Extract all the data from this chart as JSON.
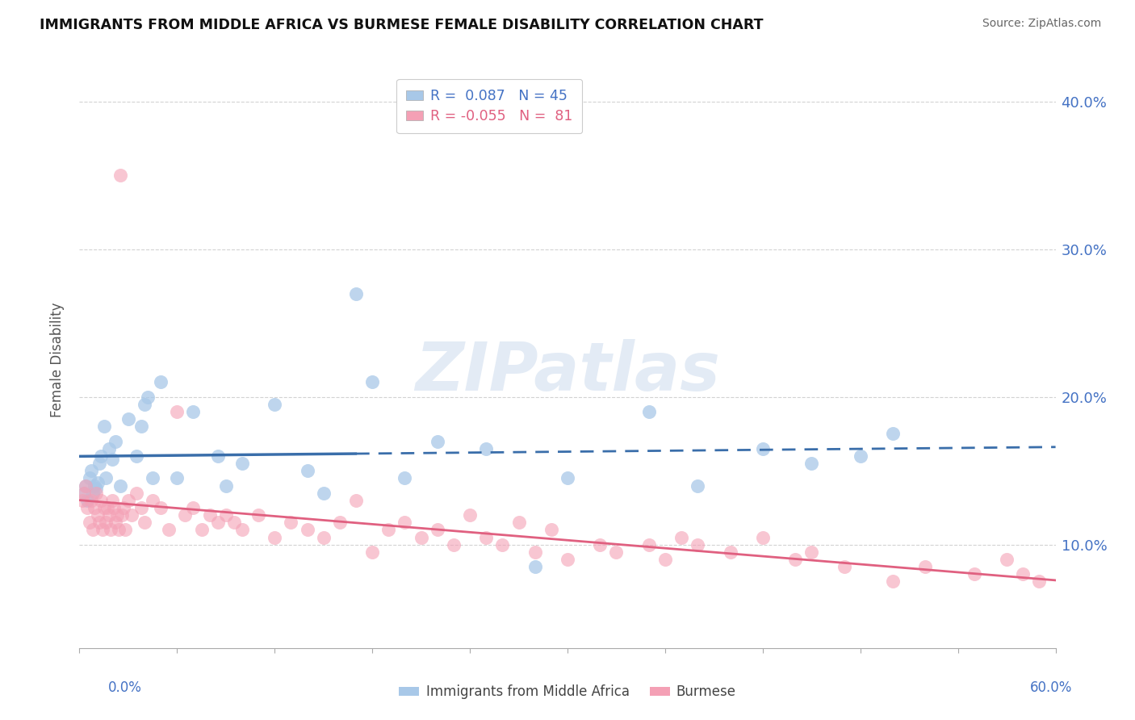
{
  "title": "IMMIGRANTS FROM MIDDLE AFRICA VS BURMESE FEMALE DISABILITY CORRELATION CHART",
  "source": "Source: ZipAtlas.com",
  "ylabel": "Female Disability",
  "xmin": 0.0,
  "xmax": 60.0,
  "ymin": 3.0,
  "ymax": 42.0,
  "yticks": [
    10.0,
    20.0,
    30.0,
    40.0
  ],
  "series1_label": "Immigrants from Middle Africa",
  "series1_R": 0.087,
  "series1_N": 45,
  "series1_color": "#a8c8e8",
  "series1_line_color": "#3a6eaa",
  "series2_label": "Burmese",
  "series2_R": -0.055,
  "series2_N": 81,
  "series2_color": "#f4a0b5",
  "series2_line_color": "#e06080",
  "watermark_text": "ZIPatlas",
  "blue_solid_end_x": 17.0,
  "blue_scatter_x": [
    0.3,
    0.4,
    0.5,
    0.6,
    0.7,
    0.8,
    0.9,
    1.0,
    1.1,
    1.2,
    1.3,
    1.5,
    1.6,
    1.8,
    2.0,
    2.2,
    2.5,
    3.0,
    3.5,
    4.0,
    4.5,
    5.0,
    6.0,
    7.0,
    8.5,
    10.0,
    12.0,
    14.0,
    17.0,
    18.0,
    20.0,
    22.0,
    25.0,
    28.0,
    30.0,
    35.0,
    38.0,
    42.0,
    45.0,
    48.0,
    4.2,
    9.0,
    15.0,
    50.0,
    3.8
  ],
  "blue_scatter_y": [
    13.5,
    14.0,
    13.0,
    14.5,
    15.0,
    13.5,
    14.0,
    13.8,
    14.2,
    15.5,
    16.0,
    18.0,
    14.5,
    16.5,
    15.8,
    17.0,
    14.0,
    18.5,
    16.0,
    19.5,
    14.5,
    21.0,
    14.5,
    19.0,
    16.0,
    15.5,
    19.5,
    15.0,
    27.0,
    21.0,
    14.5,
    17.0,
    16.5,
    8.5,
    14.5,
    19.0,
    14.0,
    16.5,
    15.5,
    16.0,
    20.0,
    14.0,
    13.5,
    17.5,
    18.0
  ],
  "pink_scatter_x": [
    0.2,
    0.3,
    0.4,
    0.5,
    0.6,
    0.7,
    0.8,
    0.9,
    1.0,
    1.1,
    1.2,
    1.3,
    1.4,
    1.5,
    1.6,
    1.7,
    1.8,
    1.9,
    2.0,
    2.1,
    2.2,
    2.3,
    2.4,
    2.5,
    2.6,
    2.7,
    2.8,
    3.0,
    3.2,
    3.5,
    3.8,
    4.0,
    4.5,
    5.0,
    5.5,
    6.0,
    6.5,
    7.0,
    7.5,
    8.0,
    8.5,
    9.0,
    9.5,
    10.0,
    11.0,
    12.0,
    13.0,
    14.0,
    15.0,
    16.0,
    17.0,
    18.0,
    19.0,
    20.0,
    21.0,
    22.0,
    23.0,
    24.0,
    25.0,
    26.0,
    27.0,
    28.0,
    29.0,
    30.0,
    32.0,
    33.0,
    35.0,
    36.0,
    37.0,
    38.0,
    40.0,
    42.0,
    44.0,
    45.0,
    47.0,
    50.0,
    52.0,
    55.0,
    57.0,
    58.0,
    59.0
  ],
  "pink_scatter_y": [
    13.0,
    13.5,
    14.0,
    12.5,
    11.5,
    13.0,
    11.0,
    12.5,
    13.5,
    12.0,
    11.5,
    13.0,
    11.0,
    12.5,
    11.5,
    12.5,
    12.0,
    11.0,
    13.0,
    12.5,
    11.5,
    12.0,
    11.0,
    35.0,
    12.0,
    12.5,
    11.0,
    13.0,
    12.0,
    13.5,
    12.5,
    11.5,
    13.0,
    12.5,
    11.0,
    19.0,
    12.0,
    12.5,
    11.0,
    12.0,
    11.5,
    12.0,
    11.5,
    11.0,
    12.0,
    10.5,
    11.5,
    11.0,
    10.5,
    11.5,
    13.0,
    9.5,
    11.0,
    11.5,
    10.5,
    11.0,
    10.0,
    12.0,
    10.5,
    10.0,
    11.5,
    9.5,
    11.0,
    9.0,
    10.0,
    9.5,
    10.0,
    9.0,
    10.5,
    10.0,
    9.5,
    10.5,
    9.0,
    9.5,
    8.5,
    7.5,
    8.5,
    8.0,
    9.0,
    8.0,
    7.5
  ]
}
